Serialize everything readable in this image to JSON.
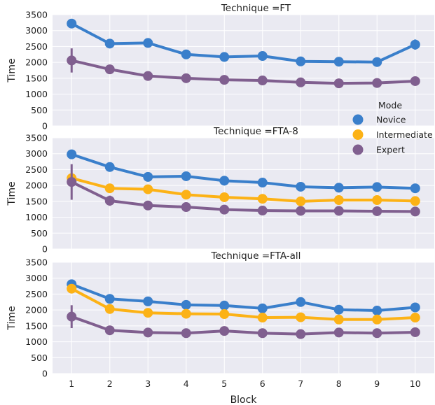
{
  "chart_data": {
    "type": "line",
    "xlabel": "Block",
    "ylabel": "Time",
    "categories": [
      "1",
      "2",
      "3",
      "4",
      "5",
      "6",
      "7",
      "8",
      "9",
      "10"
    ],
    "ylim": [
      0,
      3500
    ],
    "yticks": [
      0,
      500,
      1000,
      1500,
      2000,
      2500,
      3000,
      3500
    ],
    "legend": {
      "title": "Mode",
      "placement": "right",
      "entries": [
        {
          "name": "Novice",
          "color": "#3a7fcb"
        },
        {
          "name": "Intermediate",
          "color": "#fcb216"
        },
        {
          "name": "Expert",
          "color": "#805f8f"
        }
      ]
    },
    "panels": [
      {
        "title": "Technique =FT",
        "series": [
          {
            "name": "Novice",
            "color": "#3a7fcb",
            "values": [
              3220,
              2590,
              2610,
              2250,
              2170,
              2200,
              2030,
              2020,
              2010,
              2560
            ],
            "err": [
              60,
              40,
              40,
              40,
              40,
              40,
              40,
              40,
              40,
              160
            ]
          },
          {
            "name": "Expert",
            "color": "#805f8f",
            "values": [
              2060,
              1780,
              1570,
              1500,
              1450,
              1430,
              1370,
              1340,
              1350,
              1410
            ],
            "err": [
              380,
              40,
              40,
              40,
              40,
              40,
              40,
              40,
              40,
              40
            ]
          }
        ]
      },
      {
        "title": "Technique =FTA-8",
        "series": [
          {
            "name": "Novice",
            "color": "#3a7fcb",
            "values": [
              2980,
              2580,
              2270,
              2290,
              2150,
              2090,
              1960,
              1930,
              1950,
              1910
            ],
            "err": [
              50,
              40,
              40,
              40,
              40,
              40,
              40,
              40,
              40,
              40
            ]
          },
          {
            "name": "Intermediate",
            "color": "#fcb216",
            "values": [
              2230,
              1910,
              1880,
              1710,
              1630,
              1580,
              1500,
              1540,
              1540,
              1510
            ],
            "err": [
              100,
              40,
              40,
              40,
              40,
              40,
              40,
              40,
              40,
              40
            ]
          },
          {
            "name": "Expert",
            "color": "#805f8f",
            "values": [
              2110,
              1520,
              1370,
              1320,
              1240,
              1210,
              1200,
              1200,
              1190,
              1180
            ],
            "err": [
              560,
              160,
              40,
              40,
              40,
              40,
              40,
              40,
              40,
              40
            ]
          }
        ]
      },
      {
        "title": "Technique =FTA-all",
        "series": [
          {
            "name": "Novice",
            "color": "#3a7fcb",
            "values": [
              2810,
              2350,
              2270,
              2160,
              2140,
              2050,
              2250,
              2010,
              1980,
              2080
            ],
            "err": [
              80,
              40,
              40,
              40,
              40,
              40,
              120,
              40,
              40,
              40
            ]
          },
          {
            "name": "Intermediate",
            "color": "#fcb216",
            "values": [
              2670,
              2030,
              1910,
              1880,
              1870,
              1760,
              1770,
              1700,
              1700,
              1760
            ],
            "err": [
              120,
              40,
              40,
              40,
              40,
              40,
              40,
              40,
              40,
              40
            ]
          },
          {
            "name": "Expert",
            "color": "#805f8f",
            "values": [
              1790,
              1360,
              1290,
              1270,
              1340,
              1270,
              1240,
              1290,
              1270,
              1300
            ],
            "err": [
              360,
              40,
              40,
              40,
              40,
              40,
              40,
              40,
              40,
              40
            ]
          }
        ]
      }
    ]
  }
}
